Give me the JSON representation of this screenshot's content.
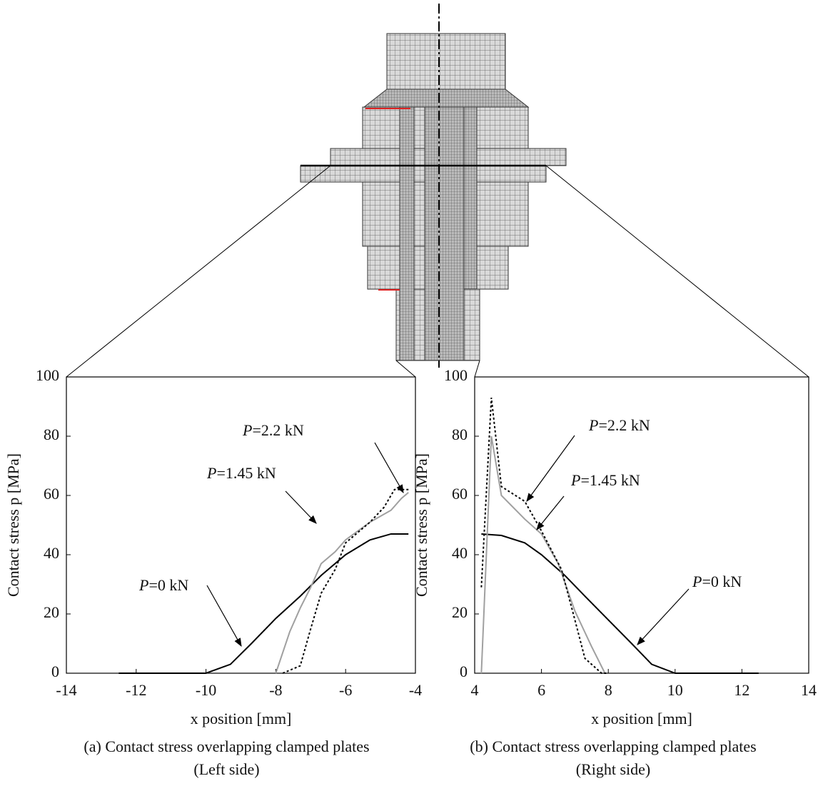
{
  "chart_data": [
    {
      "type": "line",
      "caption": [
        "(a) Contact stress overlapping clamped plates",
        "(Left side)"
      ],
      "xlabel": "x position [mm]",
      "ylabel": "Contact stress p [MPa]",
      "xlim": [
        -14,
        -4
      ],
      "xticks": [
        -14,
        -12,
        -10,
        -8,
        -6,
        -4
      ],
      "ylim": [
        0,
        100
      ],
      "yticks": [
        0,
        20,
        40,
        60,
        80,
        100
      ],
      "series": [
        {
          "name": "P=0 kN",
          "color": "#000000",
          "line_style": "solid",
          "x": [
            -12.5,
            -10,
            -9.3,
            -8.7,
            -8,
            -7.3,
            -6.7,
            -6,
            -5.3,
            -4.7,
            -4.2
          ],
          "values": [
            0,
            0,
            3,
            10,
            18.5,
            26,
            33,
            40,
            45,
            47,
            47
          ]
        },
        {
          "name": "P=1.45 kN",
          "color": "#a0a0a0",
          "line_style": "solid",
          "x": [
            -8,
            -7.6,
            -7.3,
            -7,
            -6.7,
            -6.3,
            -6,
            -5.3,
            -4.7,
            -4.4,
            -4.2
          ],
          "values": [
            0,
            14,
            22,
            29,
            37,
            41,
            45,
            51,
            55,
            59,
            61
          ]
        },
        {
          "name": "P=2.2 kN",
          "color": "#000000",
          "line_style": "dotted",
          "x": [
            -7.8,
            -7.3,
            -7,
            -6.7,
            -6.3,
            -6,
            -5.3,
            -4.9,
            -4.6,
            -4.2
          ],
          "values": [
            0,
            2.5,
            15,
            27,
            35,
            44,
            51,
            56,
            62,
            62
          ]
        }
      ]
    },
    {
      "type": "line",
      "caption": [
        "(b) Contact stress overlapping clamped plates",
        "(Right side)"
      ],
      "xlabel": "x position [mm]",
      "ylabel": "Contact stress p [MPa]",
      "xlim": [
        4,
        14
      ],
      "xticks": [
        4,
        6,
        8,
        10,
        12,
        14
      ],
      "ylim": [
        0,
        100
      ],
      "yticks": [
        0,
        20,
        40,
        60,
        80,
        100
      ],
      "series": [
        {
          "name": "P=0 kN",
          "color": "#000000",
          "line_style": "solid",
          "x": [
            4.2,
            4.8,
            5.5,
            6,
            6.7,
            7.3,
            8,
            8.7,
            9.3,
            10,
            12.5
          ],
          "values": [
            47,
            46.5,
            44,
            40,
            33,
            26,
            18,
            10,
            3,
            0,
            0
          ]
        },
        {
          "name": "P=1.45 kN",
          "color": "#a0a0a0",
          "line_style": "solid",
          "x": [
            4.2,
            4.5,
            4.8,
            5.5,
            6,
            6.5,
            7,
            7.5,
            7.9
          ],
          "values": [
            0,
            80,
            60,
            52,
            47,
            37,
            21,
            9,
            0
          ]
        },
        {
          "name": "P=2.2 kN",
          "color": "#000000",
          "line_style": "dotted",
          "x": [
            4.2,
            4.5,
            4.8,
            5.5,
            6,
            6.6,
            7,
            7.3,
            7.8,
            8
          ],
          "values": [
            29,
            93,
            63,
            58,
            48,
            35,
            18,
            5,
            0,
            0
          ]
        }
      ]
    }
  ]
}
